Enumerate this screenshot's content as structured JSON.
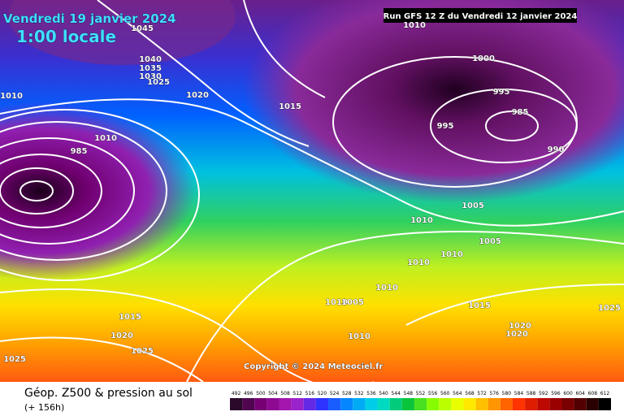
{
  "header": {
    "date": "Vendredi 19 janvier 2024",
    "time": "1:00 locale",
    "run": "Run GFS 12 Z du Vendredi 12 janvier 2024"
  },
  "copyright": "Copyright © 2024 Meteociel.fr",
  "footer": {
    "title": "Géop. Z500 & pression au sol",
    "lead": "(+ 156h)"
  },
  "isobar_labels": [
    1045,
    1010,
    1000,
    1040,
    1035,
    1030,
    1025,
    1010,
    1020,
    1015,
    995,
    985,
    995,
    990,
    1010,
    985,
    1010,
    1005,
    1005,
    1010,
    1010,
    1010,
    1010,
    1005,
    1015,
    1025,
    1015,
    1020,
    1025,
    1025,
    1010,
    1020,
    1020
  ],
  "legend": {
    "values": [
      492,
      496,
      500,
      504,
      508,
      512,
      516,
      520,
      524,
      528,
      532,
      536,
      540,
      544,
      548,
      552,
      556,
      560,
      564,
      568,
      572,
      576,
      580,
      584,
      588,
      592,
      596,
      600,
      604,
      608,
      612
    ]
  }
}
